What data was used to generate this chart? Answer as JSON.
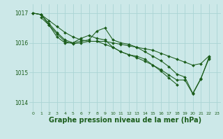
{
  "background_color": "#cce8e8",
  "grid_color": "#aad4d4",
  "line_color": "#1a5c1a",
  "xlabel": "Graphe pression niveau de la mer (hPa)",
  "xlabel_fontsize": 7,
  "ylabel_ticks": [
    1014,
    1015,
    1016,
    1017
  ],
  "xlim": [
    -0.5,
    23.5
  ],
  "ylim": [
    1013.7,
    1017.3
  ],
  "curves": [
    {
      "x": [
        0,
        1,
        2,
        3,
        4,
        5,
        6,
        7,
        8,
        9,
        10,
        11,
        12,
        13,
        14,
        15,
        16,
        17,
        18,
        19,
        20,
        21,
        22
      ],
      "y": [
        1017.0,
        1016.95,
        1016.75,
        1016.55,
        1016.35,
        1016.2,
        1016.1,
        1016.05,
        1016.05,
        1016.05,
        1016.0,
        1015.95,
        1015.9,
        1015.85,
        1015.8,
        1015.75,
        1015.65,
        1015.55,
        1015.45,
        1015.35,
        1015.25,
        1015.3,
        1015.55
      ]
    },
    {
      "x": [
        0,
        1,
        2,
        3,
        4,
        5,
        6,
        7,
        8,
        9,
        10,
        11,
        12,
        13,
        14,
        15,
        16,
        17,
        18,
        19,
        20,
        21,
        22
      ],
      "y": [
        1017.0,
        1016.95,
        1016.65,
        1016.35,
        1016.1,
        1016.0,
        1016.05,
        1016.1,
        1016.4,
        1016.5,
        1016.1,
        1016.0,
        1015.95,
        1015.85,
        1015.7,
        1015.55,
        1015.4,
        1015.2,
        1014.95,
        1014.85,
        1014.3,
        1014.8,
        1015.45
      ]
    },
    {
      "x": [
        1,
        2,
        3,
        4,
        5,
        6,
        7,
        8,
        9,
        10,
        11,
        12,
        13,
        14,
        15,
        16,
        17,
        18
      ],
      "y": [
        1016.85,
        1016.6,
        1016.2,
        1016.0,
        1016.0,
        1016.15,
        1016.25,
        1016.15,
        1016.1,
        1015.85,
        1015.7,
        1015.6,
        1015.55,
        1015.45,
        1015.25,
        1015.05,
        1014.82,
        1014.6
      ]
    },
    {
      "x": [
        0,
        1,
        2,
        3,
        4,
        5,
        6,
        7,
        8,
        9,
        10,
        11,
        12,
        13,
        14,
        15,
        16,
        17,
        18,
        19,
        20,
        21,
        22
      ],
      "y": [
        1017.0,
        1016.95,
        1016.6,
        1016.3,
        1016.05,
        1015.97,
        1016.0,
        1016.05,
        1016.05,
        1015.95,
        1015.85,
        1015.7,
        1015.6,
        1015.5,
        1015.38,
        1015.25,
        1015.1,
        1014.92,
        1014.75,
        1014.75,
        1014.28,
        1014.78,
        1015.5
      ]
    }
  ]
}
